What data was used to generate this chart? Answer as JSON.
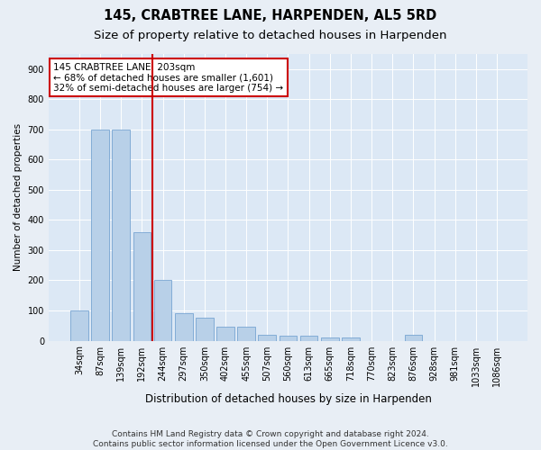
{
  "title": "145, CRABTREE LANE, HARPENDEN, AL5 5RD",
  "subtitle": "Size of property relative to detached houses in Harpenden",
  "xlabel": "Distribution of detached houses by size in Harpenden",
  "ylabel": "Number of detached properties",
  "categories": [
    "34sqm",
    "87sqm",
    "139sqm",
    "192sqm",
    "244sqm",
    "297sqm",
    "350sqm",
    "402sqm",
    "455sqm",
    "507sqm",
    "560sqm",
    "613sqm",
    "665sqm",
    "718sqm",
    "770sqm",
    "823sqm",
    "876sqm",
    "928sqm",
    "981sqm",
    "1033sqm",
    "1086sqm"
  ],
  "values": [
    100,
    700,
    700,
    360,
    200,
    90,
    75,
    47,
    47,
    20,
    18,
    18,
    10,
    10,
    0,
    0,
    20,
    0,
    0,
    0,
    0
  ],
  "bar_color": "#b8d0e8",
  "bar_edge_color": "#6699cc",
  "vline_x": 3.5,
  "vline_color": "#cc0000",
  "annotation_text": "145 CRABTREE LANE: 203sqm\n← 68% of detached houses are smaller (1,601)\n32% of semi-detached houses are larger (754) →",
  "annotation_box_color": "#ffffff",
  "annotation_box_edge": "#cc0000",
  "ylim": [
    0,
    950
  ],
  "yticks": [
    0,
    100,
    200,
    300,
    400,
    500,
    600,
    700,
    800,
    900
  ],
  "footer": "Contains HM Land Registry data © Crown copyright and database right 2024.\nContains public sector information licensed under the Open Government Licence v3.0.",
  "bg_color": "#e8eef5",
  "plot_bg_color": "#dce8f5",
  "title_fontsize": 10.5,
  "subtitle_fontsize": 9.5,
  "tick_fontsize": 7,
  "ylabel_fontsize": 7.5,
  "xlabel_fontsize": 8.5,
  "footer_fontsize": 6.5,
  "annotation_fontsize": 7.5
}
